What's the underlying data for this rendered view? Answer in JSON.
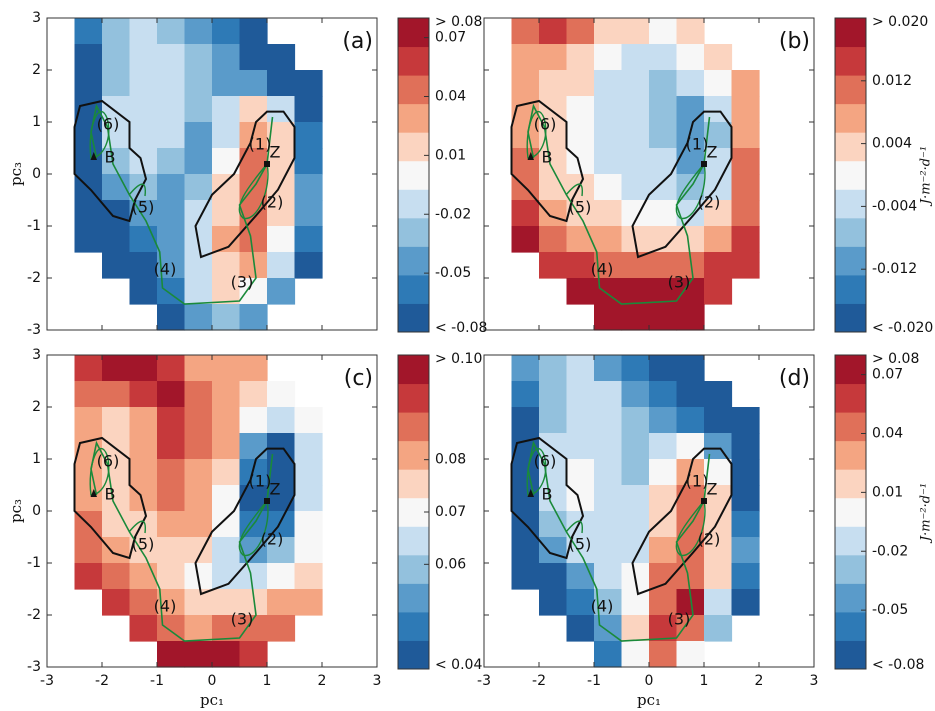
{
  "chart_data": [
    {
      "type": "heatmap",
      "label": "(a)",
      "annotations": [
        "(1)",
        "(2)",
        "(3)",
        "(4)",
        "(5)",
        "(6)",
        "B",
        "Z"
      ],
      "ylabel": "pc₃",
      "x": [
        -2.25,
        -1.75,
        -1.25,
        -0.75,
        -0.25,
        0.25,
        0.75,
        1.25,
        1.75
      ],
      "y": [
        2.75,
        2.25,
        1.75,
        1.25,
        0.75,
        0.25,
        -0.25,
        -0.75,
        -1.25,
        -1.75,
        -2.25,
        -2.75
      ],
      "z": [
        [
          -0.06,
          -0.03,
          -0.02,
          -0.03,
          -0.05,
          -0.06,
          -0.07,
          null,
          null
        ],
        [
          -0.08,
          -0.03,
          -0.01,
          -0.02,
          -0.03,
          -0.05,
          -0.07,
          -0.08,
          null
        ],
        [
          -0.08,
          -0.03,
          -0.01,
          -0.02,
          -0.03,
          -0.04,
          -0.05,
          -0.07,
          -0.08
        ],
        [
          -0.08,
          -0.02,
          -0.01,
          -0.02,
          -0.03,
          -0.02,
          0.01,
          -0.02,
          -0.08
        ],
        [
          -0.08,
          -0.02,
          -0.01,
          -0.02,
          -0.04,
          -0.01,
          0.03,
          0.02,
          -0.06
        ],
        [
          -0.08,
          -0.03,
          -0.01,
          -0.03,
          -0.04,
          0.0,
          0.04,
          0.02,
          -0.06
        ],
        [
          -0.08,
          -0.05,
          -0.03,
          -0.04,
          -0.03,
          0.01,
          0.05,
          0.02,
          -0.05
        ],
        [
          -0.08,
          -0.07,
          -0.05,
          -0.04,
          -0.02,
          0.02,
          0.05,
          0.01,
          -0.05
        ],
        [
          -0.08,
          -0.08,
          -0.06,
          -0.04,
          -0.01,
          0.03,
          0.04,
          0.0,
          -0.06
        ],
        [
          null,
          -0.08,
          -0.07,
          -0.05,
          -0.02,
          0.02,
          0.03,
          -0.02,
          -0.07
        ],
        [
          null,
          null,
          -0.08,
          -0.06,
          -0.02,
          0.01,
          0.0,
          -0.05,
          null
        ],
        [
          null,
          null,
          null,
          -0.08,
          -0.05,
          -0.03,
          -0.05,
          null,
          null
        ]
      ],
      "xlim": [
        -3,
        3
      ],
      "ylim": [
        -3,
        3
      ],
      "xticks": [
        -3,
        -2,
        -1,
        0,
        1,
        2,
        3
      ],
      "yticks": [
        -3,
        -2,
        -1,
        0,
        1,
        2,
        3
      ],
      "clim": [
        -0.08,
        0.08
      ],
      "cticks": [
        {
          "value": -0.08,
          "label": "< -0.08"
        },
        -0.05,
        -0.02,
        0.01,
        0.04,
        0.07,
        {
          "value": 0.08,
          "label": "> 0.08"
        }
      ],
      "colors": [
        "#1f5a99",
        "#2e7ab6",
        "#5a9bca",
        "#93c1dd",
        "#c7def0",
        "#f7f7f7",
        "#fbd4c0",
        "#f4a582",
        "#e07059",
        "#c6393b",
        "#a2162a"
      ]
    },
    {
      "type": "heatmap",
      "label": "(b)",
      "annotations": [
        "(1)",
        "(2)",
        "(3)",
        "(4)",
        "(5)",
        "(6)",
        "B",
        "Z"
      ],
      "cbar_label": "J·m⁻²·d⁻¹",
      "x": [
        -2.25,
        -1.75,
        -1.25,
        -0.75,
        -0.25,
        0.25,
        0.75,
        1.25,
        1.75
      ],
      "y": [
        2.75,
        2.25,
        1.75,
        1.25,
        0.75,
        0.25,
        -0.25,
        -0.75,
        -1.25,
        -1.75,
        -2.25,
        -2.75
      ],
      "z": [
        [
          0.012,
          0.016,
          0.01,
          0.004,
          0.002,
          0.0,
          0.004,
          null,
          null
        ],
        [
          0.008,
          0.008,
          0.004,
          0.0,
          -0.002,
          -0.004,
          0.0,
          0.004,
          null
        ],
        [
          0.008,
          0.004,
          0.002,
          -0.002,
          -0.004,
          -0.006,
          -0.004,
          0.0,
          0.008
        ],
        [
          0.008,
          0.002,
          0.0,
          -0.002,
          -0.004,
          -0.006,
          -0.01,
          -0.004,
          0.008
        ],
        [
          0.008,
          0.002,
          0.0,
          -0.002,
          -0.004,
          -0.006,
          -0.012,
          -0.006,
          0.008
        ],
        [
          0.01,
          0.002,
          0.0,
          -0.002,
          -0.004,
          -0.004,
          -0.01,
          -0.004,
          0.01
        ],
        [
          0.012,
          0.004,
          0.002,
          0.0,
          -0.002,
          -0.002,
          -0.008,
          -0.002,
          0.01
        ],
        [
          0.016,
          0.008,
          0.004,
          0.002,
          0.0,
          0.0,
          -0.004,
          0.002,
          0.012
        ],
        [
          0.02,
          0.012,
          0.008,
          0.006,
          0.004,
          0.004,
          0.004,
          0.008,
          0.014
        ],
        [
          null,
          0.016,
          0.014,
          0.012,
          0.012,
          0.012,
          0.012,
          0.014,
          0.016
        ],
        [
          null,
          null,
          0.018,
          0.02,
          0.02,
          0.02,
          0.018,
          0.016,
          null
        ],
        [
          null,
          null,
          null,
          0.02,
          0.02,
          0.02,
          0.018,
          null,
          null
        ]
      ],
      "xlim": [
        -3,
        3
      ],
      "ylim": [
        -3,
        3
      ],
      "xticks": [
        -3,
        -2,
        -1,
        0,
        1,
        2,
        3
      ],
      "yticks": [
        -3,
        -2,
        -1,
        0,
        1,
        2,
        3
      ],
      "clim": [
        -0.02,
        0.02
      ],
      "cticks": [
        {
          "value": -0.02,
          "label": "< -0.020"
        },
        {
          "value": -0.012,
          "label": "-0.012"
        },
        {
          "value": -0.004,
          "label": "-0.004"
        },
        {
          "value": 0.004,
          "label": "0.004"
        },
        {
          "value": 0.012,
          "label": "0.012"
        },
        {
          "value": 0.02,
          "label": "> 0.020"
        }
      ],
      "colors": [
        "#1f5a99",
        "#2e7ab6",
        "#5a9bca",
        "#93c1dd",
        "#c7def0",
        "#f7f7f7",
        "#fbd4c0",
        "#f4a582",
        "#e07059",
        "#c6393b",
        "#a2162a"
      ]
    },
    {
      "type": "heatmap",
      "label": "(c)",
      "annotations": [
        "(1)",
        "(2)",
        "(3)",
        "(4)",
        "(5)",
        "(6)",
        "B",
        "Z"
      ],
      "xlabel": "pc₁",
      "ylabel": "pc₃",
      "x": [
        -2.25,
        -1.75,
        -1.25,
        -0.75,
        -0.25,
        0.25,
        0.75,
        1.25,
        1.75
      ],
      "y": [
        2.75,
        2.25,
        1.75,
        1.25,
        0.75,
        0.25,
        -0.25,
        -0.75,
        -1.25,
        -1.75,
        -2.25,
        -2.75
      ],
      "z": [
        [
          0.09,
          0.1,
          0.1,
          0.09,
          0.08,
          0.08,
          0.08,
          null,
          null
        ],
        [
          0.085,
          0.085,
          0.09,
          0.095,
          0.085,
          0.08,
          0.075,
          0.07,
          null
        ],
        [
          0.08,
          0.075,
          0.08,
          0.09,
          0.085,
          0.08,
          0.07,
          0.065,
          0.07
        ],
        [
          0.08,
          0.075,
          0.08,
          0.09,
          0.085,
          0.08,
          0.055,
          0.045,
          0.065
        ],
        [
          0.08,
          0.075,
          0.08,
          0.085,
          0.08,
          0.075,
          0.05,
          0.04,
          0.065
        ],
        [
          0.08,
          0.075,
          0.08,
          0.085,
          0.08,
          0.07,
          0.045,
          0.04,
          0.065
        ],
        [
          0.085,
          0.075,
          0.075,
          0.08,
          0.08,
          0.07,
          0.05,
          0.05,
          0.07
        ],
        [
          0.085,
          0.08,
          0.075,
          0.075,
          0.075,
          0.065,
          0.055,
          0.06,
          0.07
        ],
        [
          0.09,
          0.085,
          0.08,
          0.075,
          0.07,
          0.065,
          0.065,
          0.07,
          0.075
        ],
        [
          null,
          0.09,
          0.085,
          0.08,
          0.075,
          0.075,
          0.075,
          0.08,
          0.08
        ],
        [
          null,
          null,
          0.09,
          0.085,
          0.08,
          0.085,
          0.085,
          0.085,
          null
        ],
        [
          null,
          null,
          null,
          0.1,
          0.1,
          0.095,
          0.09,
          null,
          null
        ]
      ],
      "xlim": [
        -3,
        3
      ],
      "ylim": [
        -3,
        3
      ],
      "xticks": [
        -3,
        -2,
        -1,
        0,
        1,
        2,
        3
      ],
      "yticks": [
        -3,
        -2,
        -1,
        0,
        1,
        2,
        3
      ],
      "clim": [
        0.04,
        0.1
      ],
      "cticks": [
        {
          "value": 0.04,
          "label": "< 0.04"
        },
        0.06,
        0.07,
        0.08,
        {
          "value": 0.1,
          "label": "> 0.10"
        }
      ],
      "colors": [
        "#1f5a99",
        "#2e7ab6",
        "#5a9bca",
        "#93c1dd",
        "#c7def0",
        "#f7f7f7",
        "#fbd4c0",
        "#f4a582",
        "#e07059",
        "#c6393b",
        "#a2162a"
      ]
    },
    {
      "type": "heatmap",
      "label": "(d)",
      "annotations": [
        "(1)",
        "(2)",
        "(3)",
        "(4)",
        "(5)",
        "(6)",
        "B",
        "Z"
      ],
      "xlabel": "pc₁",
      "cbar_label": "J·m⁻²·d⁻¹",
      "x": [
        -2.25,
        -1.75,
        -1.25,
        -0.75,
        -0.25,
        0.25,
        0.75,
        1.25,
        1.75
      ],
      "y": [
        2.75,
        2.25,
        1.75,
        1.25,
        0.75,
        0.25,
        -0.25,
        -0.75,
        -1.25,
        -1.75,
        -2.25,
        -2.75
      ],
      "z": [
        [
          -0.05,
          -0.03,
          -0.02,
          -0.04,
          -0.06,
          -0.08,
          -0.08,
          null,
          null
        ],
        [
          -0.06,
          -0.03,
          -0.01,
          -0.02,
          -0.04,
          -0.06,
          -0.08,
          -0.08,
          null
        ],
        [
          -0.08,
          -0.03,
          -0.01,
          -0.01,
          -0.03,
          -0.04,
          -0.06,
          -0.08,
          -0.08
        ],
        [
          -0.08,
          -0.02,
          -0.01,
          -0.01,
          -0.03,
          -0.02,
          0.0,
          -0.04,
          -0.08
        ],
        [
          -0.08,
          -0.02,
          0.0,
          -0.01,
          -0.03,
          0.0,
          0.03,
          0.0,
          -0.08
        ],
        [
          -0.08,
          -0.02,
          0.0,
          -0.01,
          -0.02,
          0.01,
          0.04,
          0.02,
          -0.07
        ],
        [
          -0.08,
          -0.03,
          -0.01,
          -0.02,
          -0.02,
          0.02,
          0.05,
          0.02,
          -0.06
        ],
        [
          -0.08,
          -0.05,
          -0.02,
          -0.02,
          -0.01,
          0.03,
          0.05,
          0.02,
          -0.05
        ],
        [
          -0.08,
          -0.07,
          -0.04,
          -0.02,
          0.0,
          0.04,
          0.05,
          0.01,
          -0.06
        ],
        [
          null,
          -0.08,
          -0.06,
          -0.03,
          0.0,
          0.05,
          0.07,
          -0.01,
          -0.07
        ],
        [
          null,
          null,
          -0.08,
          -0.05,
          0.01,
          0.06,
          0.04,
          -0.03,
          null
        ],
        [
          null,
          null,
          null,
          -0.06,
          0.0,
          0.04,
          0.0,
          null,
          null
        ]
      ],
      "xlim": [
        -3,
        3
      ],
      "ylim": [
        -3,
        3
      ],
      "xticks": [
        -3,
        -2,
        -1,
        0,
        1,
        2,
        3
      ],
      "yticks": [
        -3,
        -2,
        -1,
        0,
        1,
        2,
        3
      ],
      "clim": [
        -0.08,
        0.08
      ],
      "cticks": [
        {
          "value": -0.08,
          "label": "< -0.08"
        },
        -0.05,
        -0.02,
        0.01,
        0.04,
        0.07,
        {
          "value": 0.08,
          "label": "> 0.08"
        }
      ],
      "colors": [
        "#1f5a99",
        "#2e7ab6",
        "#5a9bca",
        "#93c1dd",
        "#c7def0",
        "#f7f7f7",
        "#fbd4c0",
        "#f4a582",
        "#e07059",
        "#c6393b",
        "#a2162a"
      ]
    }
  ]
}
